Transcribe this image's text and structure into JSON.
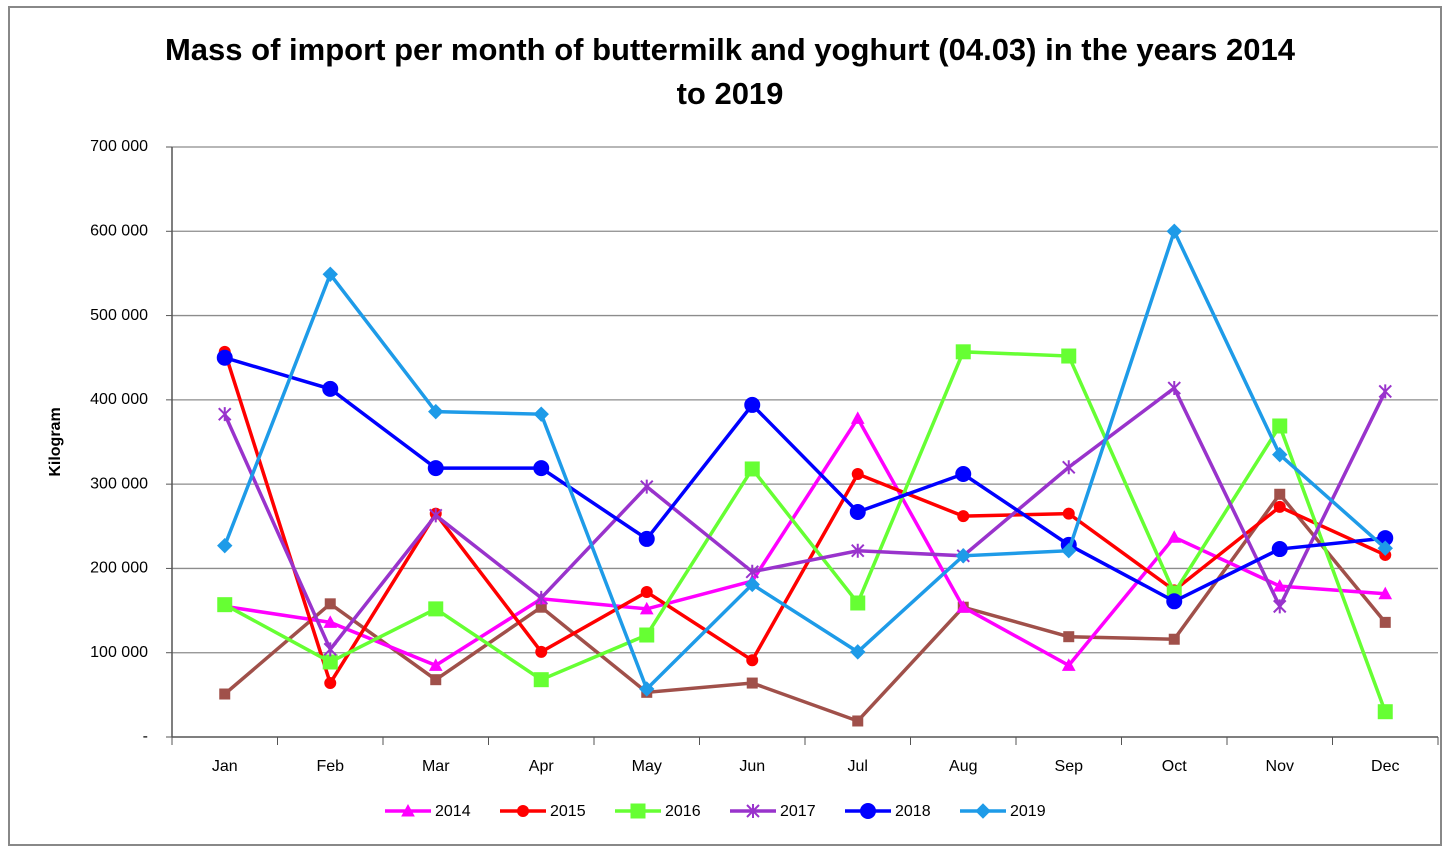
{
  "chart_data": {
    "type": "line",
    "title": "Mass of import per month of buttermilk and yoghurt (04.03) in the years 2014 to 2019",
    "ylabel": "Kilogram",
    "categories": [
      "Jan",
      "Feb",
      "Mar",
      "Apr",
      "May",
      "Jun",
      "Jul",
      "Aug",
      "Sep",
      "Oct",
      "Nov",
      "Dec"
    ],
    "ylim": [
      0,
      700000
    ],
    "yticks": [
      {
        "value": 0,
        "label": "-"
      },
      {
        "value": 100000,
        "label": "100 000"
      },
      {
        "value": 200000,
        "label": "200 000"
      },
      {
        "value": 300000,
        "label": "300 000"
      },
      {
        "value": 400000,
        "label": "400 000"
      },
      {
        "value": 500000,
        "label": "500 000"
      },
      {
        "value": 600000,
        "label": "600 000"
      },
      {
        "value": 700000,
        "label": "700 000"
      }
    ],
    "grid": true,
    "legend": "bottom",
    "series": [
      {
        "color": "#a0504a",
        "marker": "square-small",
        "values": [
          51000,
          158000,
          68000,
          154000,
          53000,
          64000,
          19000,
          154000,
          119000,
          116000,
          288000,
          136000
        ]
      },
      {
        "name": "2014",
        "color": "#ff00ff",
        "marker": "triangle",
        "values": [
          155000,
          136000,
          85000,
          164000,
          152000,
          185000,
          378000,
          154000,
          85000,
          237000,
          179000,
          170000
        ]
      },
      {
        "name": "2015",
        "color": "#ff0000",
        "marker": "circle",
        "values": [
          457000,
          64000,
          265000,
          101000,
          172000,
          91000,
          312000,
          262000,
          265000,
          174000,
          273000,
          216000
        ]
      },
      {
        "name": "2016",
        "color": "#66ff33",
        "marker": "square",
        "values": [
          157000,
          89000,
          152000,
          68000,
          121000,
          318000,
          159000,
          457000,
          452000,
          171000,
          369000,
          30000
        ]
      },
      {
        "name": "2017",
        "color": "#9933cc",
        "marker": "star",
        "values": [
          383000,
          104000,
          263000,
          165000,
          297000,
          196000,
          221000,
          215000,
          320000,
          414000,
          155000,
          410000
        ]
      },
      {
        "name": "2018",
        "color": "#0000ff",
        "marker": "circle-large",
        "values": [
          450000,
          413000,
          319000,
          319000,
          235000,
          394000,
          267000,
          312000,
          228000,
          161000,
          223000,
          236000
        ]
      },
      {
        "name": "2019",
        "color": "#1e9be8",
        "marker": "diamond",
        "values": [
          227000,
          549000,
          386000,
          383000,
          57000,
          181000,
          101000,
          215000,
          221000,
          600000,
          335000,
          224000
        ]
      }
    ]
  }
}
